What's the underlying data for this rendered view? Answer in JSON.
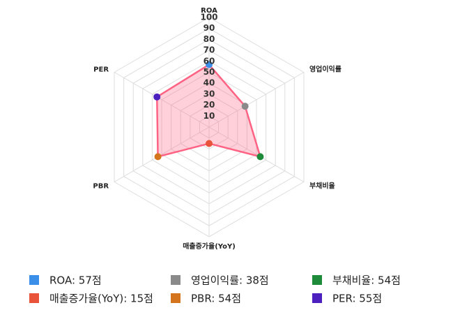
{
  "chart_data": {
    "type": "radar",
    "categories": [
      "ROA",
      "영업이익률",
      "부채비율",
      "매출증가율(YoY)",
      "PBR",
      "PER"
    ],
    "values": [
      57,
      38,
      54,
      15,
      54,
      55
    ],
    "value_labels": [
      "ROA: 57점",
      "영업이익률: 38점",
      "부채비율: 54점",
      "매출증가율(YoY): 15점",
      "PBR: 54점",
      "PER: 55점"
    ],
    "point_colors": [
      "#3b8fe8",
      "#8a8a8a",
      "#1e8b3a",
      "#e8533a",
      "#d4741c",
      "#4c1fbf"
    ],
    "color": "#ff6384",
    "rlim": [
      0,
      100
    ],
    "rticks": [
      10,
      20,
      30,
      40,
      50,
      60,
      70,
      80,
      90,
      100
    ],
    "grid": true
  }
}
